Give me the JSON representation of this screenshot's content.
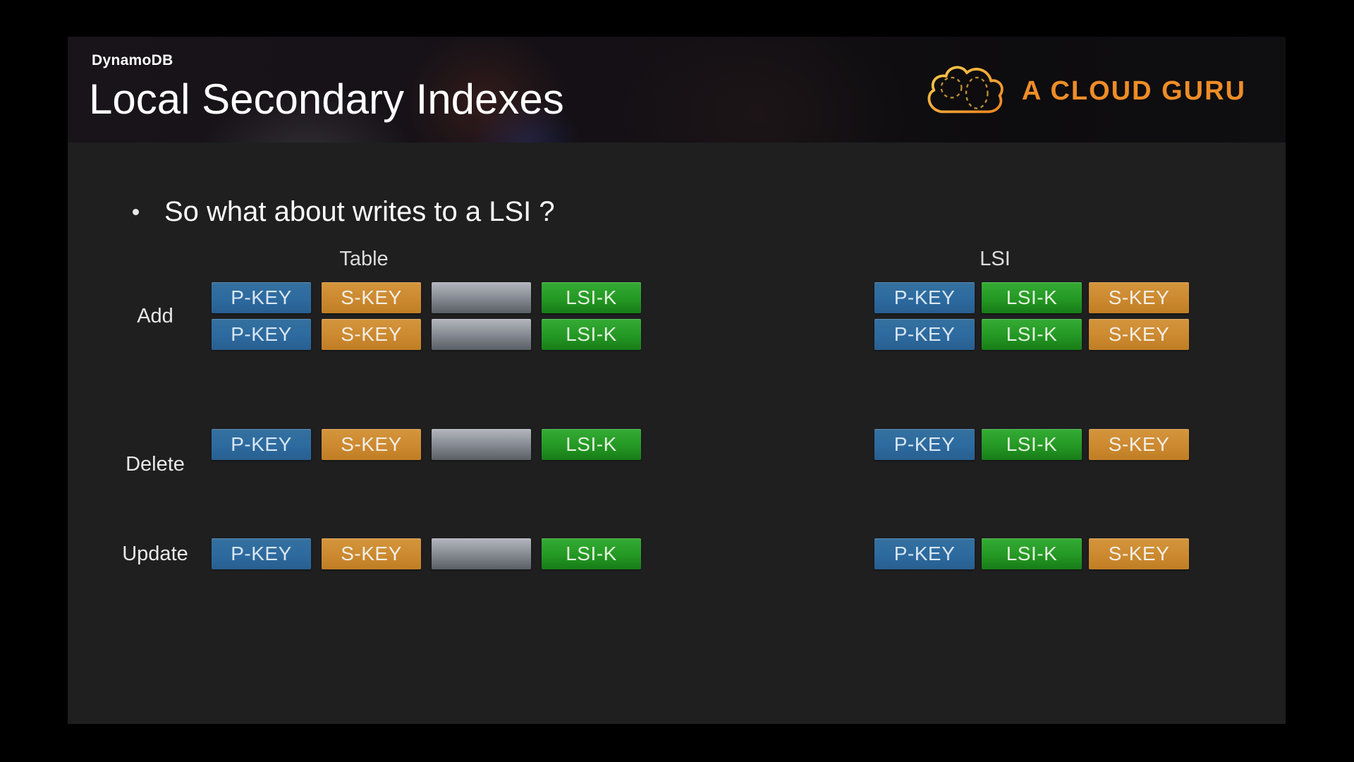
{
  "slide": {
    "eyebrow": "DynamoDB",
    "title": "Local Secondary Indexes",
    "logo": {
      "brand": "A CLOUD GURU",
      "icon": "cloud-outline-with-dashed-circles"
    },
    "bullet": {
      "text": "So what about writes to a LSI ?"
    },
    "group_headers": {
      "table": "Table",
      "lsi": "LSI"
    },
    "operations": [
      {
        "label": "Add",
        "table_rows": [
          [
            "P-KEY",
            "S-KEY",
            "",
            "LSI-K"
          ],
          [
            "P-KEY",
            "S-KEY",
            "",
            "LSI-K"
          ]
        ],
        "lsi_rows": [
          [
            "P-KEY",
            "LSI-K",
            "S-KEY"
          ],
          [
            "P-KEY",
            "LSI-K",
            "S-KEY"
          ]
        ]
      },
      {
        "label": "Delete",
        "table_rows": [
          [
            "P-KEY",
            "S-KEY",
            "",
            "LSI-K"
          ]
        ],
        "lsi_rows": [
          [
            "P-KEY",
            "LSI-K",
            "S-KEY"
          ]
        ]
      },
      {
        "label": "Update",
        "table_rows": [
          [
            "P-KEY",
            "S-KEY",
            "",
            "LSI-K"
          ]
        ],
        "lsi_rows": [
          [
            "P-KEY",
            "LSI-K",
            "S-KEY"
          ]
        ]
      }
    ],
    "colors": {
      "pkey_blue": "#2d6a9f",
      "skey_orange": "#cc8930",
      "lsik_green": "#249824",
      "filler_gray": "#8b9097",
      "brand_orange": "#ee8d27",
      "slide_background": "#1f1f20",
      "header_background": "#141015"
    }
  }
}
